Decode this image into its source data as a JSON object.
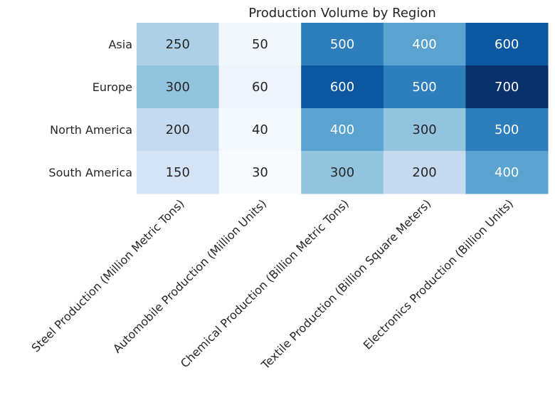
{
  "chart_data": {
    "type": "heatmap",
    "title": "Production Volume by Region",
    "xlabel": "",
    "ylabel": "",
    "rows": [
      "Asia",
      "Europe",
      "North America",
      "South America"
    ],
    "columns": [
      "Steel Production (Million Metric Tons)",
      "Automobile Production (Million Units)",
      "Chemical Production (Billion Metric Tons)",
      "Textile Production (Billion Square Meters)",
      "Electronics Production (Billion Units)"
    ],
    "values": [
      [
        250,
        50,
        500,
        400,
        600
      ],
      [
        300,
        60,
        600,
        500,
        700
      ],
      [
        200,
        40,
        400,
        300,
        500
      ],
      [
        150,
        30,
        300,
        200,
        400
      ]
    ],
    "value_range": [
      30,
      700
    ],
    "colormap": "Blues",
    "grid": false,
    "legend": "none"
  }
}
